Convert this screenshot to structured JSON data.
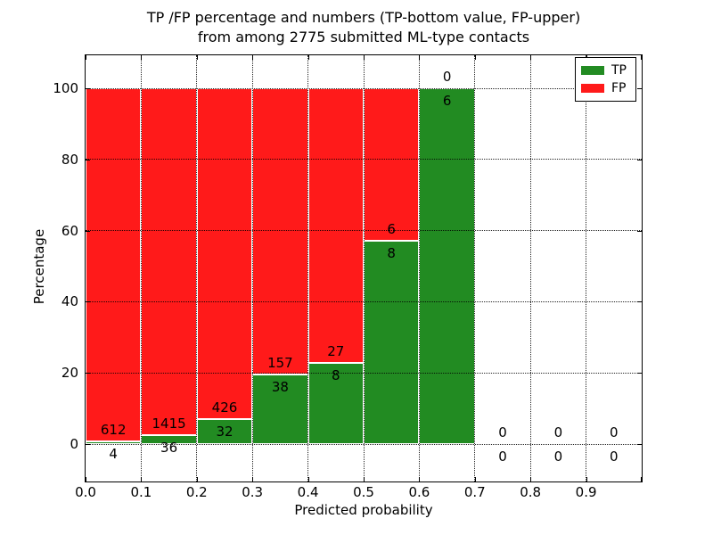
{
  "chart_data": {
    "type": "bar",
    "variant": "stacked-percentage-histogram",
    "title_line1": "TP /FP percentage and numbers (TP-bottom value, FP-upper)",
    "title_line2": "from among 2775 submitted ML-type contacts",
    "xlabel": "Predicted probability",
    "ylabel": "Percentage",
    "x_tick_labels": [
      "0.0",
      "0.1",
      "0.2",
      "0.3",
      "0.4",
      "0.5",
      "0.6",
      "0.7",
      "0.8",
      "0.9"
    ],
    "y_ticks": [
      0,
      20,
      40,
      60,
      80,
      100
    ],
    "xlim": [
      0.0,
      1.0
    ],
    "ylim_percent": [
      -10.5,
      109.8
    ],
    "grid": "dotted",
    "total_contacts": "2775",
    "legend": {
      "position": "upper-right",
      "entries": [
        {
          "label": "TP",
          "color": "#228B22"
        },
        {
          "label": "FP",
          "color": "#FF1A1A"
        }
      ]
    },
    "bins": [
      {
        "range": [
          0.0,
          0.1
        ],
        "tp": 4,
        "fp": 612
      },
      {
        "range": [
          0.1,
          0.2
        ],
        "tp": 36,
        "fp": 1415
      },
      {
        "range": [
          0.2,
          0.3
        ],
        "tp": 32,
        "fp": 426
      },
      {
        "range": [
          0.3,
          0.4
        ],
        "tp": 38,
        "fp": 157
      },
      {
        "range": [
          0.4,
          0.5
        ],
        "tp": 8,
        "fp": 27
      },
      {
        "range": [
          0.5,
          0.6
        ],
        "tp": 8,
        "fp": 6
      },
      {
        "range": [
          0.6,
          0.7
        ],
        "tp": 6,
        "fp": 0
      },
      {
        "range": [
          0.7,
          0.8
        ],
        "tp": 0,
        "fp": 0
      },
      {
        "range": [
          0.8,
          0.9
        ],
        "tp": 0,
        "fp": 0
      },
      {
        "range": [
          0.9,
          1.0
        ],
        "tp": 0,
        "fp": 0
      }
    ],
    "colors": {
      "tp": "#228B22",
      "fp": "#FF1A1A",
      "bar_edge": "#FFFFFF",
      "grid": "#000000",
      "text": "#000000",
      "background": "#FFFFFF"
    }
  }
}
